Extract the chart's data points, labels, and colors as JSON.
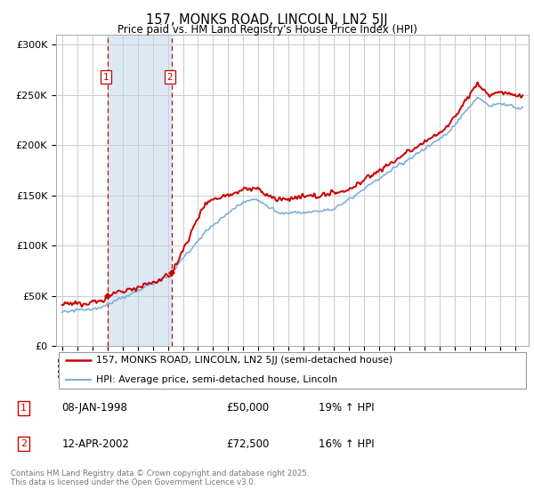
{
  "title": "157, MONKS ROAD, LINCOLN, LN2 5JJ",
  "subtitle": "Price paid vs. HM Land Registry's House Price Index (HPI)",
  "ylabel_ticks": [
    "£0",
    "£50K",
    "£100K",
    "£150K",
    "£200K",
    "£250K",
    "£300K"
  ],
  "ytick_values": [
    0,
    50000,
    100000,
    150000,
    200000,
    250000,
    300000
  ],
  "ylim": [
    0,
    310000
  ],
  "transactions": [
    {
      "date_num": 1998.04,
      "price": 50000,
      "label": "1"
    },
    {
      "date_num": 2002.28,
      "price": 72500,
      "label": "2"
    }
  ],
  "legend_entries": [
    {
      "label": "157, MONKS ROAD, LINCOLN, LN2 5JJ (semi-detached house)",
      "color": "#cc0000",
      "lw": 1.8
    },
    {
      "label": "HPI: Average price, semi-detached house, Lincoln",
      "color": "#7fb0d8",
      "lw": 1.5
    }
  ],
  "table_rows": [
    {
      "num": "1",
      "date": "08-JAN-1998",
      "price": "£50,000",
      "hpi": "19% ↑ HPI"
    },
    {
      "num": "2",
      "date": "12-APR-2002",
      "price": "£72,500",
      "hpi": "16% ↑ HPI"
    }
  ],
  "footer": "Contains HM Land Registry data © Crown copyright and database right 2025.\nThis data is licensed under the Open Government Licence v3.0.",
  "background_color": "#ffffff",
  "grid_color": "#cccccc",
  "highlight_color": "#dce9f5"
}
